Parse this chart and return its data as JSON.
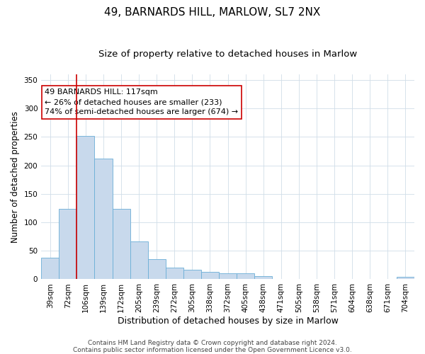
{
  "title1": "49, BARNARDS HILL, MARLOW, SL7 2NX",
  "title2": "Size of property relative to detached houses in Marlow",
  "xlabel": "Distribution of detached houses by size in Marlow",
  "ylabel": "Number of detached properties",
  "categories": [
    "39sqm",
    "72sqm",
    "106sqm",
    "139sqm",
    "172sqm",
    "205sqm",
    "239sqm",
    "272sqm",
    "305sqm",
    "338sqm",
    "372sqm",
    "405sqm",
    "438sqm",
    "471sqm",
    "505sqm",
    "538sqm",
    "571sqm",
    "604sqm",
    "638sqm",
    "671sqm",
    "704sqm"
  ],
  "values": [
    38,
    124,
    252,
    212,
    124,
    66,
    35,
    21,
    17,
    13,
    10,
    10,
    5,
    1,
    0,
    0,
    0,
    0,
    0,
    0,
    4
  ],
  "bar_color": "#c8d9ec",
  "bar_edge_color": "#6aaed6",
  "vline_color": "#cc0000",
  "vline_index": 2,
  "ylim": [
    0,
    360
  ],
  "yticks": [
    0,
    50,
    100,
    150,
    200,
    250,
    300,
    350
  ],
  "annotation_text": "49 BARNARDS HILL: 117sqm\n← 26% of detached houses are smaller (233)\n74% of semi-detached houses are larger (674) →",
  "annotation_box_color": "#ffffff",
  "annotation_box_edge": "#cc0000",
  "footer1": "Contains HM Land Registry data © Crown copyright and database right 2024.",
  "footer2": "Contains public sector information licensed under the Open Government Licence v3.0.",
  "title1_fontsize": 11,
  "title2_fontsize": 9.5,
  "xlabel_fontsize": 9,
  "ylabel_fontsize": 8.5,
  "tick_fontsize": 7.5,
  "annot_fontsize": 8,
  "footer_fontsize": 6.5,
  "grid_color": "#d0dde8",
  "bg_color": "#ffffff"
}
